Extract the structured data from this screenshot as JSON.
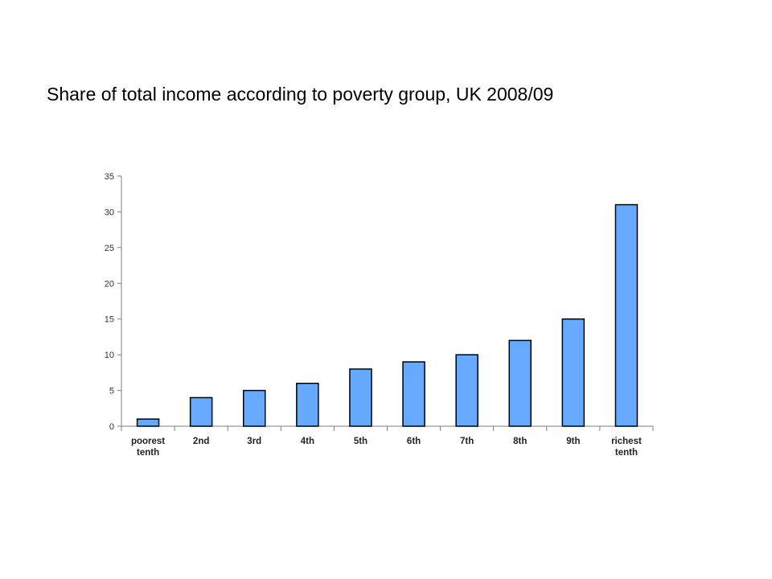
{
  "title": "Share of total income according to poverty group, UK 2008/09",
  "colors": {
    "bar_fill": "#66aaff",
    "bar_stroke": "#000000",
    "axis": "#7f7f7f"
  },
  "chart_data": {
    "type": "bar",
    "title": "Share of total income according to poverty group, UK 2008/09",
    "xlabel": "",
    "ylabel": "",
    "categories": [
      [
        "poorest",
        "tenth"
      ],
      [
        "2nd"
      ],
      [
        "3rd"
      ],
      [
        "4th"
      ],
      [
        "5th"
      ],
      [
        "6th"
      ],
      [
        "7th"
      ],
      [
        "8th"
      ],
      [
        "9th"
      ],
      [
        "richest",
        "tenth"
      ]
    ],
    "values": [
      1,
      4,
      5,
      6,
      8,
      9,
      10,
      12,
      15,
      31
    ],
    "ylim": [
      0,
      35
    ],
    "yticks": [
      0,
      5,
      10,
      15,
      20,
      25,
      30,
      35
    ],
    "grid": false,
    "legend": "none"
  }
}
